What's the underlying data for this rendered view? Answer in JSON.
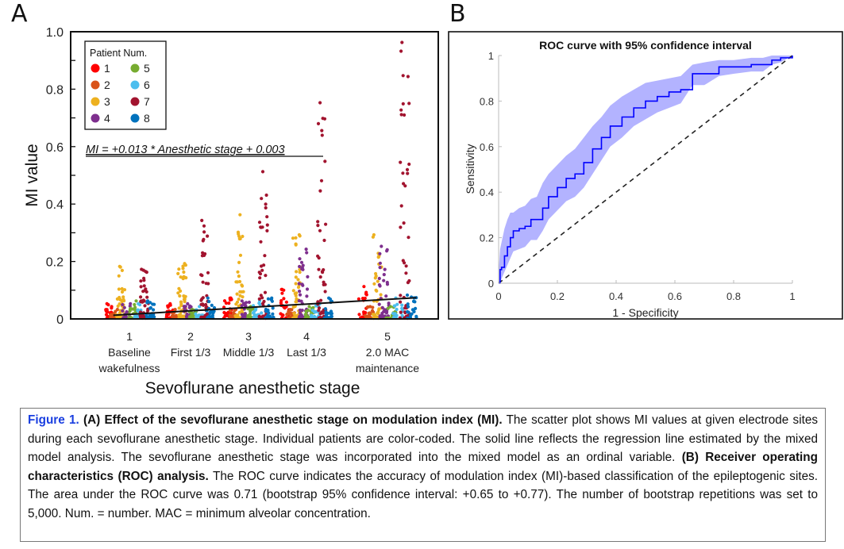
{
  "panels": {
    "a_label": "A",
    "b_label": "B"
  },
  "chart_data": [
    {
      "type": "scatter",
      "panel": "A",
      "title": "",
      "xlabel": "Sevoflurane anesthetic stage",
      "ylabel": "MI value",
      "ylim": [
        0,
        1.0
      ],
      "yticks": [
        0,
        0.2,
        0.4,
        0.6,
        0.8,
        1.0
      ],
      "ytick_labels": [
        "0",
        "0.2",
        "0.4",
        "0.6",
        "0.8",
        "1.0"
      ],
      "categories": [
        {
          "num": "1",
          "line1": "Baseline",
          "line2": "wakefulness"
        },
        {
          "num": "2",
          "line1": "First 1/3",
          "line2": ""
        },
        {
          "num": "3",
          "line1": "Middle 1/3",
          "line2": ""
        },
        {
          "num": "4",
          "line1": "Last 1/3",
          "line2": ""
        },
        {
          "num": "5",
          "line1": "2.0 MAC",
          "line2": "maintenance"
        }
      ],
      "legend": {
        "title": "Patient Num.",
        "placement": "top-left",
        "entries": [
          {
            "label": "1",
            "color": "#ff0000"
          },
          {
            "label": "2",
            "color": "#d95319"
          },
          {
            "label": "3",
            "color": "#edb120"
          },
          {
            "label": "4",
            "color": "#7e2f8e"
          },
          {
            "label": "5",
            "color": "#77ac30"
          },
          {
            "label": "6",
            "color": "#4dbeee"
          },
          {
            "label": "7",
            "color": "#a2142f"
          },
          {
            "label": "8",
            "color": "#0072bd"
          }
        ]
      },
      "regression": {
        "equation": "MI = +0.013 * Anesthetic stage + 0.003",
        "slope": 0.013,
        "intercept": 0.003
      },
      "series_max_mi": {
        "description": "approximate maximum MI per patient per stage (stages 1-5)",
        "patient_1": [
          0.05,
          0.05,
          0.07,
          0.1,
          0.11
        ],
        "patient_2": [
          0.03,
          0.03,
          0.03,
          0.03,
          0.04
        ],
        "patient_3": [
          0.18,
          0.19,
          0.36,
          0.29,
          0.29
        ],
        "patient_4": [
          0.05,
          0.05,
          0.06,
          0.24,
          0.25
        ],
        "patient_5": [
          0.06,
          0.03,
          0.04,
          0.04,
          0.04
        ],
        "patient_6": [
          0.05,
          0.04,
          0.06,
          0.05,
          0.07
        ],
        "patient_7": [
          0.17,
          0.34,
          0.51,
          0.75,
          0.96
        ],
        "patient_8": [
          0.06,
          0.07,
          0.07,
          0.07,
          0.08
        ]
      }
    },
    {
      "type": "line",
      "panel": "B",
      "title": "ROC curve with 95% confidence interval",
      "xlabel": "1 - Specificity",
      "ylabel": "Sensitivity",
      "xlim": [
        0,
        1
      ],
      "ylim": [
        0,
        1
      ],
      "xticks": [
        "0",
        "0.2",
        "0.4",
        "0.6",
        "0.8",
        "1"
      ],
      "yticks": [
        "0",
        "0.2",
        "0.4",
        "0.6",
        "0.8",
        "1"
      ],
      "series": [
        {
          "name": "ROC curve",
          "color": "#0000ff",
          "x": [
            0,
            0.005,
            0.01,
            0.02,
            0.03,
            0.04,
            0.05,
            0.07,
            0.09,
            0.11,
            0.13,
            0.15,
            0.17,
            0.2,
            0.23,
            0.26,
            0.29,
            0.32,
            0.35,
            0.38,
            0.42,
            0.46,
            0.5,
            0.54,
            0.58,
            0.62,
            0.66,
            0.7,
            0.75,
            0.8,
            0.86,
            0.9,
            0.93,
            0.96,
            1.0
          ],
          "y": [
            0,
            0.06,
            0.07,
            0.12,
            0.16,
            0.2,
            0.23,
            0.24,
            0.25,
            0.28,
            0.28,
            0.33,
            0.38,
            0.42,
            0.46,
            0.48,
            0.53,
            0.59,
            0.64,
            0.69,
            0.73,
            0.77,
            0.8,
            0.82,
            0.84,
            0.85,
            0.92,
            0.92,
            0.95,
            0.95,
            0.96,
            0.96,
            0.98,
            0.99,
            1.0
          ]
        },
        {
          "name": "95% CI upper",
          "color": "#b3b3ff",
          "y": [
            0.05,
            0.15,
            0.18,
            0.24,
            0.28,
            0.31,
            0.31,
            0.33,
            0.34,
            0.37,
            0.38,
            0.44,
            0.48,
            0.52,
            0.56,
            0.59,
            0.64,
            0.69,
            0.73,
            0.78,
            0.82,
            0.85,
            0.88,
            0.89,
            0.9,
            0.91,
            0.96,
            0.97,
            0.98,
            0.98,
            0.99,
            0.99,
            1.0,
            1.0,
            1.0
          ]
        },
        {
          "name": "95% CI lower",
          "color": "#b3b3ff",
          "y": [
            0,
            0.0,
            0.02,
            0.05,
            0.08,
            0.11,
            0.14,
            0.15,
            0.16,
            0.19,
            0.19,
            0.23,
            0.28,
            0.32,
            0.36,
            0.38,
            0.42,
            0.48,
            0.54,
            0.6,
            0.64,
            0.69,
            0.72,
            0.75,
            0.77,
            0.79,
            0.87,
            0.87,
            0.91,
            0.92,
            0.93,
            0.93,
            0.96,
            0.97,
            1.0
          ]
        },
        {
          "name": "chance line",
          "style": "dashed",
          "color": "#222222",
          "x": [
            0,
            1
          ],
          "y": [
            0,
            1
          ]
        }
      ],
      "auc": 0.71
    }
  ],
  "caption": {
    "figure_label": "Figure 1.",
    "a_heading": "(A) Effect of the sevoflurane anesthetic stage on modulation index (MI).",
    "a_text": "The scatter plot shows MI values at given electrode sites during each sevoflurane anesthetic stage. Individual patients are color-coded. The solid line reflects the regression line estimated by the mixed model analysis. The sevoflurane anesthetic stage was incorporated into the mixed model as an ordinal variable.",
    "b_heading": "(B) Receiver operating characteristics (ROC) analysis.",
    "b_text": "The ROC curve indicates the accuracy of modulation index (MI)-based classification of the epileptogenic sites. The area under the ROC curve was 0.71  (bootstrap 95% confidence interval: +0.65 to +0.77). The number of bootstrap repetitions was set to 5,000. Num. = number. MAC = minimum alveolar concentration."
  }
}
